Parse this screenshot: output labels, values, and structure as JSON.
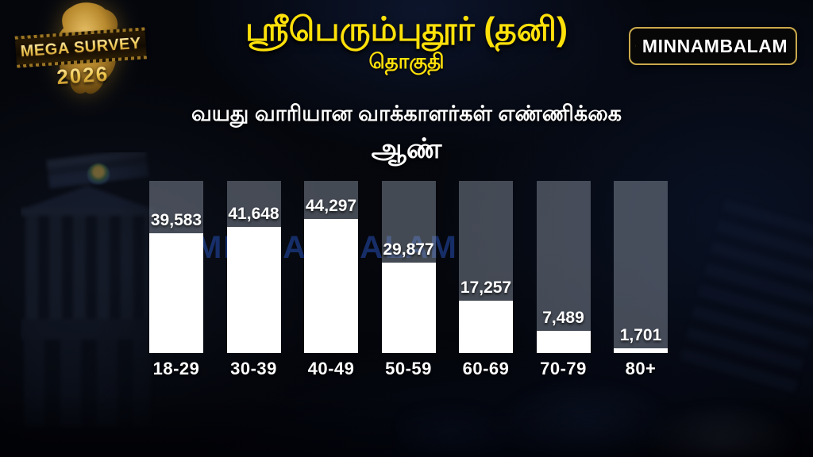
{
  "header": {
    "mega_logo": {
      "line1": "MEGA SURVEY",
      "line2": "2026"
    },
    "title": "ஸ்ரீபெரும்புதூர் (தனி)",
    "subtitle": "தொகுதி",
    "brand": {
      "name": "MINNAMBALAM"
    }
  },
  "chart_heading": {
    "line1": "வயது வாரியான வாக்காளர்கள் எண்ணிக்கை",
    "line2": "ஆண்"
  },
  "watermark": {
    "text": "MINNAMBALAM"
  },
  "colors": {
    "title_yellow": "#ffe10a",
    "heading_white": "#ffffff",
    "bar_fill": "#ffffff",
    "column_track": "#474c58",
    "watermark_blue": "#1e3f8f",
    "brand_orange": "#f08a1d",
    "badge_gold_border": "#caa94c",
    "background": "#05070d"
  },
  "chart_data": {
    "type": "bar",
    "title": "வயது வாரியான வாக்காளர்கள் எண்ணிக்கை (ஆண்)",
    "categories": [
      "18-29",
      "30-39",
      "40-49",
      "50-59",
      "60-69",
      "70-79",
      "80+"
    ],
    "values": [
      39583,
      41648,
      44297,
      29877,
      17257,
      7489,
      1701
    ],
    "value_labels": [
      "39,583",
      "41,648",
      "44,297",
      "29,877",
      "17,257",
      "7,489",
      "1,701"
    ],
    "xlabel": "",
    "ylabel": "",
    "ylim": [
      0,
      57000
    ],
    "grid": false,
    "legend": null,
    "bar_color": "#ffffff",
    "track_color": "rgba(158,166,180,0.42)"
  }
}
